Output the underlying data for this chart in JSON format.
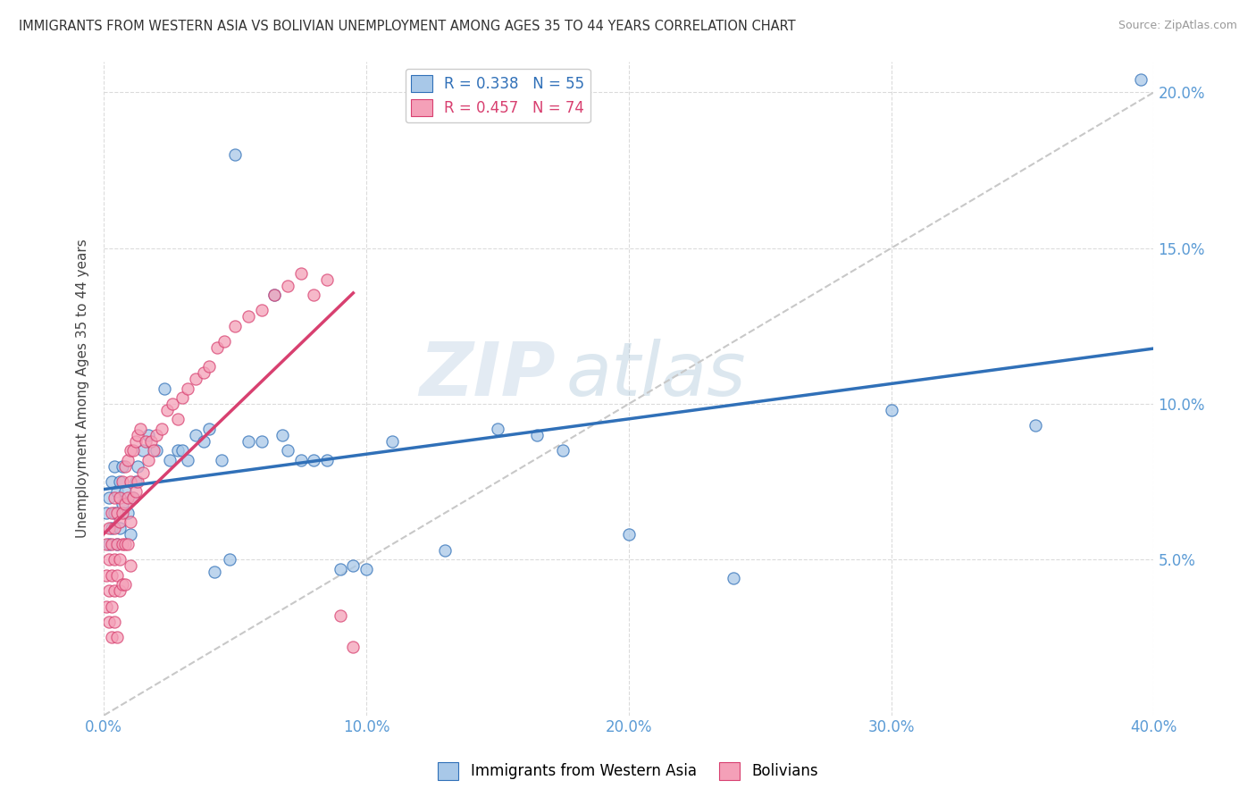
{
  "title": "IMMIGRANTS FROM WESTERN ASIA VS BOLIVIAN UNEMPLOYMENT AMONG AGES 35 TO 44 YEARS CORRELATION CHART",
  "source": "Source: ZipAtlas.com",
  "ylabel": "Unemployment Among Ages 35 to 44 years",
  "blue_label": "Immigrants from Western Asia",
  "pink_label": "Bolivians",
  "blue_R": "0.338",
  "blue_N": "55",
  "pink_R": "0.457",
  "pink_N": "74",
  "blue_color": "#a8c8e8",
  "pink_color": "#f4a0b8",
  "blue_line_color": "#3070b8",
  "pink_line_color": "#d84070",
  "ref_line_color": "#c8c8c8",
  "watermark_zip": "ZIP",
  "watermark_atlas": "atlas",
  "xlim": [
    0.0,
    0.4
  ],
  "ylim": [
    0.0,
    0.21
  ],
  "xticks": [
    0.0,
    0.1,
    0.2,
    0.3,
    0.4
  ],
  "yticks": [
    0.05,
    0.1,
    0.15,
    0.2
  ],
  "blue_points_x": [
    0.001,
    0.002,
    0.002,
    0.003,
    0.003,
    0.004,
    0.004,
    0.005,
    0.005,
    0.006,
    0.006,
    0.007,
    0.007,
    0.008,
    0.009,
    0.01,
    0.011,
    0.012,
    0.013,
    0.015,
    0.017,
    0.02,
    0.023,
    0.025,
    0.028,
    0.03,
    0.032,
    0.035,
    0.038,
    0.04,
    0.042,
    0.045,
    0.048,
    0.05,
    0.055,
    0.06,
    0.065,
    0.068,
    0.07,
    0.075,
    0.08,
    0.085,
    0.09,
    0.095,
    0.1,
    0.11,
    0.13,
    0.15,
    0.165,
    0.175,
    0.2,
    0.24,
    0.3,
    0.355,
    0.395
  ],
  "blue_points_y": [
    0.065,
    0.055,
    0.07,
    0.06,
    0.075,
    0.065,
    0.08,
    0.055,
    0.072,
    0.06,
    0.075,
    0.068,
    0.08,
    0.072,
    0.065,
    0.058,
    0.07,
    0.075,
    0.08,
    0.085,
    0.09,
    0.085,
    0.105,
    0.082,
    0.085,
    0.085,
    0.082,
    0.09,
    0.088,
    0.092,
    0.046,
    0.082,
    0.05,
    0.18,
    0.088,
    0.088,
    0.135,
    0.09,
    0.085,
    0.082,
    0.082,
    0.082,
    0.047,
    0.048,
    0.047,
    0.088,
    0.053,
    0.092,
    0.09,
    0.085,
    0.058,
    0.044,
    0.098,
    0.093,
    0.204
  ],
  "pink_points_x": [
    0.001,
    0.001,
    0.001,
    0.002,
    0.002,
    0.002,
    0.002,
    0.003,
    0.003,
    0.003,
    0.003,
    0.003,
    0.004,
    0.004,
    0.004,
    0.004,
    0.004,
    0.005,
    0.005,
    0.005,
    0.005,
    0.006,
    0.006,
    0.006,
    0.006,
    0.007,
    0.007,
    0.007,
    0.007,
    0.008,
    0.008,
    0.008,
    0.008,
    0.009,
    0.009,
    0.009,
    0.01,
    0.01,
    0.01,
    0.01,
    0.011,
    0.011,
    0.012,
    0.012,
    0.013,
    0.013,
    0.014,
    0.015,
    0.016,
    0.017,
    0.018,
    0.019,
    0.02,
    0.022,
    0.024,
    0.026,
    0.028,
    0.03,
    0.032,
    0.035,
    0.038,
    0.04,
    0.043,
    0.046,
    0.05,
    0.055,
    0.06,
    0.065,
    0.07,
    0.075,
    0.08,
    0.085,
    0.09,
    0.095
  ],
  "pink_points_y": [
    0.055,
    0.045,
    0.035,
    0.06,
    0.05,
    0.04,
    0.03,
    0.065,
    0.055,
    0.045,
    0.035,
    0.025,
    0.07,
    0.06,
    0.05,
    0.04,
    0.03,
    0.065,
    0.055,
    0.045,
    0.025,
    0.07,
    0.062,
    0.05,
    0.04,
    0.075,
    0.065,
    0.055,
    0.042,
    0.08,
    0.068,
    0.055,
    0.042,
    0.082,
    0.07,
    0.055,
    0.085,
    0.075,
    0.062,
    0.048,
    0.085,
    0.07,
    0.088,
    0.072,
    0.09,
    0.075,
    0.092,
    0.078,
    0.088,
    0.082,
    0.088,
    0.085,
    0.09,
    0.092,
    0.098,
    0.1,
    0.095,
    0.102,
    0.105,
    0.108,
    0.11,
    0.112,
    0.118,
    0.12,
    0.125,
    0.128,
    0.13,
    0.135,
    0.138,
    0.142,
    0.135,
    0.14,
    0.032,
    0.022
  ]
}
